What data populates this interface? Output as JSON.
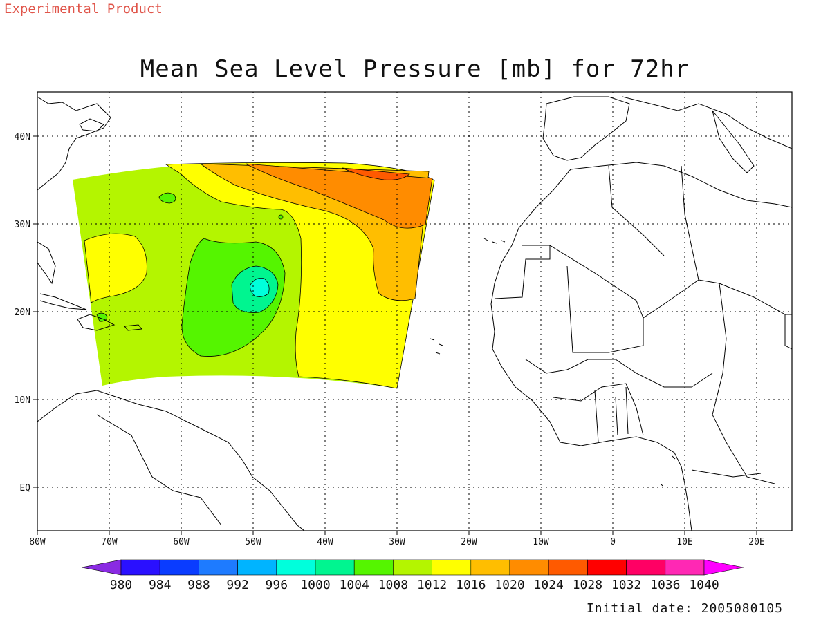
{
  "header": {
    "note": "Experimental Product"
  },
  "title": "Mean Sea Level Pressure [mb] for 72hr",
  "footer": {
    "initial_date": "Initial date: 2005080105"
  },
  "axes": {
    "lat_labels": [
      "40N",
      "30N",
      "20N",
      "10N",
      "EQ"
    ],
    "lon_labels": [
      "80W",
      "70W",
      "60W",
      "50W",
      "40W",
      "30W",
      "20W",
      "10W",
      "0",
      "10E",
      "20E"
    ]
  },
  "colorbar": {
    "labels": [
      "980",
      "984",
      "988",
      "992",
      "996",
      "1000",
      "1004",
      "1008",
      "1012",
      "1016",
      "1020",
      "1024",
      "1028",
      "1032",
      "1036",
      "1040"
    ],
    "colors": [
      "#8a2be2",
      "#2a10ff",
      "#0a3cff",
      "#1e7bff",
      "#00b4ff",
      "#00ffdc",
      "#00f590",
      "#55f500",
      "#b4f500",
      "#ffff00",
      "#ffbe00",
      "#ff8c00",
      "#ff5a00",
      "#ff0000",
      "#ff0064",
      "#ff28b4",
      "#ff00ff"
    ]
  },
  "chart_data": {
    "type": "heatmap",
    "title": "Mean Sea Level Pressure [mb] for 72hr",
    "variable": "Mean Sea Level Pressure",
    "units": "mb",
    "forecast_hour": 72,
    "initial_date": "2005080105",
    "lon_range": [
      -80,
      25
    ],
    "lat_range": [
      -5,
      45
    ],
    "contour_interval": 4,
    "low_center": {
      "lon": -49.5,
      "lat": 22.5,
      "min_band": "1000-1004"
    },
    "high_region": {
      "lon": -33,
      "lat": 35,
      "max_band": "1024-1028"
    },
    "bands_present": [
      "1000-1004",
      "1004-1008",
      "1008-1012",
      "1012-1016",
      "1016-1020",
      "1020-1024",
      "1024-1028"
    ]
  }
}
